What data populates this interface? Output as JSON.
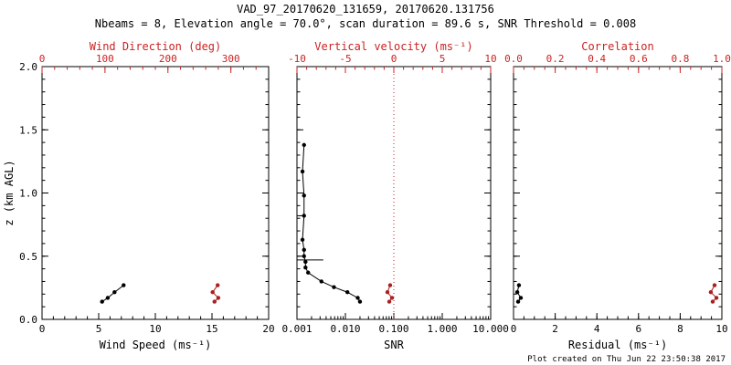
{
  "header": {
    "title": "VAD_97_20170620_131659, 20170620.131756",
    "subtitle": "Nbeams = 8, Elevation angle = 70.0°, scan duration = 89.6 s, SNR Threshold = 0.008"
  },
  "footer": {
    "created": "Plot created on Thu Jun 22 23:50:38 2017"
  },
  "colors": {
    "black": "#000000",
    "red": "#cc2222",
    "dark_red": "#aa2020",
    "background": "#ffffff"
  },
  "y_axis": {
    "label": "z (km AGL)",
    "range": [
      0,
      2
    ],
    "ticks": [
      0,
      0.5,
      1,
      1.5,
      2
    ],
    "tick_labels": [
      "0.0",
      "0.5",
      "1.0",
      "1.5",
      "2.0"
    ],
    "minor_step": 0.1
  },
  "chart_data": [
    {
      "type": "scatter",
      "panel": "wind",
      "bottom_axis": {
        "label": "Wind Speed (ms⁻¹)",
        "range": [
          0,
          20
        ],
        "ticks": [
          0,
          5,
          10,
          15,
          20
        ],
        "tick_labels": [
          "0",
          "5",
          "10",
          "15",
          "20"
        ],
        "minor_step": 1
      },
      "top_axis": {
        "label": "Wind Direction (deg)",
        "range": [
          0,
          360
        ],
        "ticks": [
          0,
          100,
          200,
          300
        ],
        "tick_labels": [
          "0",
          "100",
          "200",
          "300"
        ],
        "minor_step": 20
      },
      "series": [
        {
          "name": "wind-speed",
          "axis": "bottom",
          "color": "black",
          "points": [
            [
              7.2,
              0.27
            ],
            [
              6.4,
              0.215
            ],
            [
              5.8,
              0.17
            ],
            [
              5.3,
              0.14
            ]
          ]
        },
        {
          "name": "wind-direction",
          "axis": "top",
          "color": "red",
          "points": [
            [
              279,
              0.27
            ],
            [
              271,
              0.215
            ],
            [
              280,
              0.17
            ],
            [
              274,
              0.14
            ]
          ]
        }
      ]
    },
    {
      "type": "scatter",
      "panel": "snr",
      "bottom_axis": {
        "label": "SNR",
        "scale": "log",
        "range": [
          0.001,
          10
        ],
        "ticks": [
          0.001,
          0.01,
          0.1,
          1,
          10
        ],
        "tick_labels": [
          "0.001",
          "0.010",
          "0.100",
          "1.000",
          "10.000"
        ]
      },
      "top_axis": {
        "label": "Vertical velocity (ms⁻¹)",
        "range": [
          -10,
          10
        ],
        "ticks": [
          -10,
          -5,
          0,
          5,
          10
        ],
        "tick_labels": [
          "-10",
          "-5",
          "0",
          "5",
          "10"
        ],
        "minor_step": 1
      },
      "reference_line": {
        "axis": "top",
        "value": 0,
        "style": "dotted",
        "color": "red"
      },
      "whiskers": [
        {
          "z": 0.82,
          "x0": 0.001,
          "x1": 0.0014
        },
        {
          "z": 0.47,
          "x0": 0.001,
          "x1": 0.0035
        }
      ],
      "series": [
        {
          "name": "snr-profile",
          "axis": "bottom",
          "color": "black",
          "points": [
            [
              0.0014,
              1.38
            ],
            [
              0.0013,
              1.17
            ],
            [
              0.0014,
              0.98
            ],
            [
              0.0014,
              0.82
            ],
            [
              0.0013,
              0.63
            ],
            [
              0.0014,
              0.55
            ],
            [
              0.0014,
              0.5
            ],
            [
              0.0015,
              0.455
            ],
            [
              0.0015,
              0.41
            ],
            [
              0.0017,
              0.37
            ],
            [
              0.0032,
              0.3
            ],
            [
              0.0058,
              0.255
            ],
            [
              0.011,
              0.215
            ],
            [
              0.018,
              0.17
            ],
            [
              0.02,
              0.14
            ]
          ]
        },
        {
          "name": "vertical-velocity",
          "axis": "top",
          "color": "red",
          "points": [
            [
              -0.38,
              0.27
            ],
            [
              -0.66,
              0.215
            ],
            [
              -0.19,
              0.17
            ],
            [
              -0.47,
              0.14
            ]
          ]
        }
      ]
    },
    {
      "type": "scatter",
      "panel": "residual",
      "bottom_axis": {
        "label": "Residual (ms⁻¹)",
        "range": [
          0,
          10
        ],
        "ticks": [
          0,
          2,
          4,
          6,
          8,
          10
        ],
        "tick_labels": [
          "0",
          "2",
          "4",
          "6",
          "8",
          "10"
        ],
        "minor_step": 0.5
      },
      "top_axis": {
        "label": "Correlation",
        "range": [
          0,
          1
        ],
        "ticks": [
          0,
          0.2,
          0.4,
          0.6,
          0.8,
          1
        ],
        "tick_labels": [
          "0.0",
          "0.2",
          "0.4",
          "0.6",
          "0.8",
          "1.0"
        ],
        "minor_step": 0.05
      },
      "series": [
        {
          "name": "residual",
          "axis": "bottom",
          "color": "black",
          "points": [
            [
              0.26,
              0.27
            ],
            [
              0.18,
              0.215
            ],
            [
              0.35,
              0.17
            ],
            [
              0.22,
              0.14
            ]
          ]
        },
        {
          "name": "correlation",
          "axis": "top",
          "color": "red",
          "points": [
            [
              0.965,
              0.27
            ],
            [
              0.947,
              0.215
            ],
            [
              0.974,
              0.17
            ],
            [
              0.956,
              0.14
            ]
          ]
        }
      ]
    }
  ]
}
